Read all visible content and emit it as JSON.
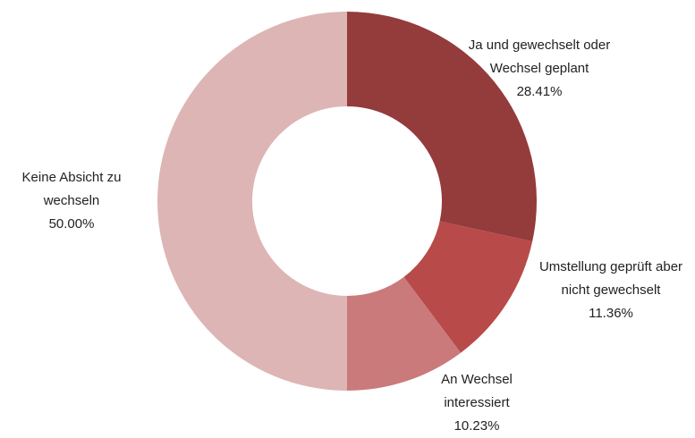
{
  "chart_data": {
    "type": "donut",
    "categories": [
      "Ja und gewechselt oder Wechsel geplant",
      "Umstellung geprüft aber nicht gewechselt",
      "An Wechsel interessiert",
      "Keine Absicht zu wechseln"
    ],
    "values": [
      28.41,
      11.36,
      10.23,
      50.0
    ],
    "value_labels": [
      "28.41%",
      "11.36%",
      "10.23%",
      "50.00%"
    ],
    "colors": [
      "#943b3b",
      "#b84a4a",
      "#ca7a7a",
      "#ddb5b5"
    ]
  }
}
